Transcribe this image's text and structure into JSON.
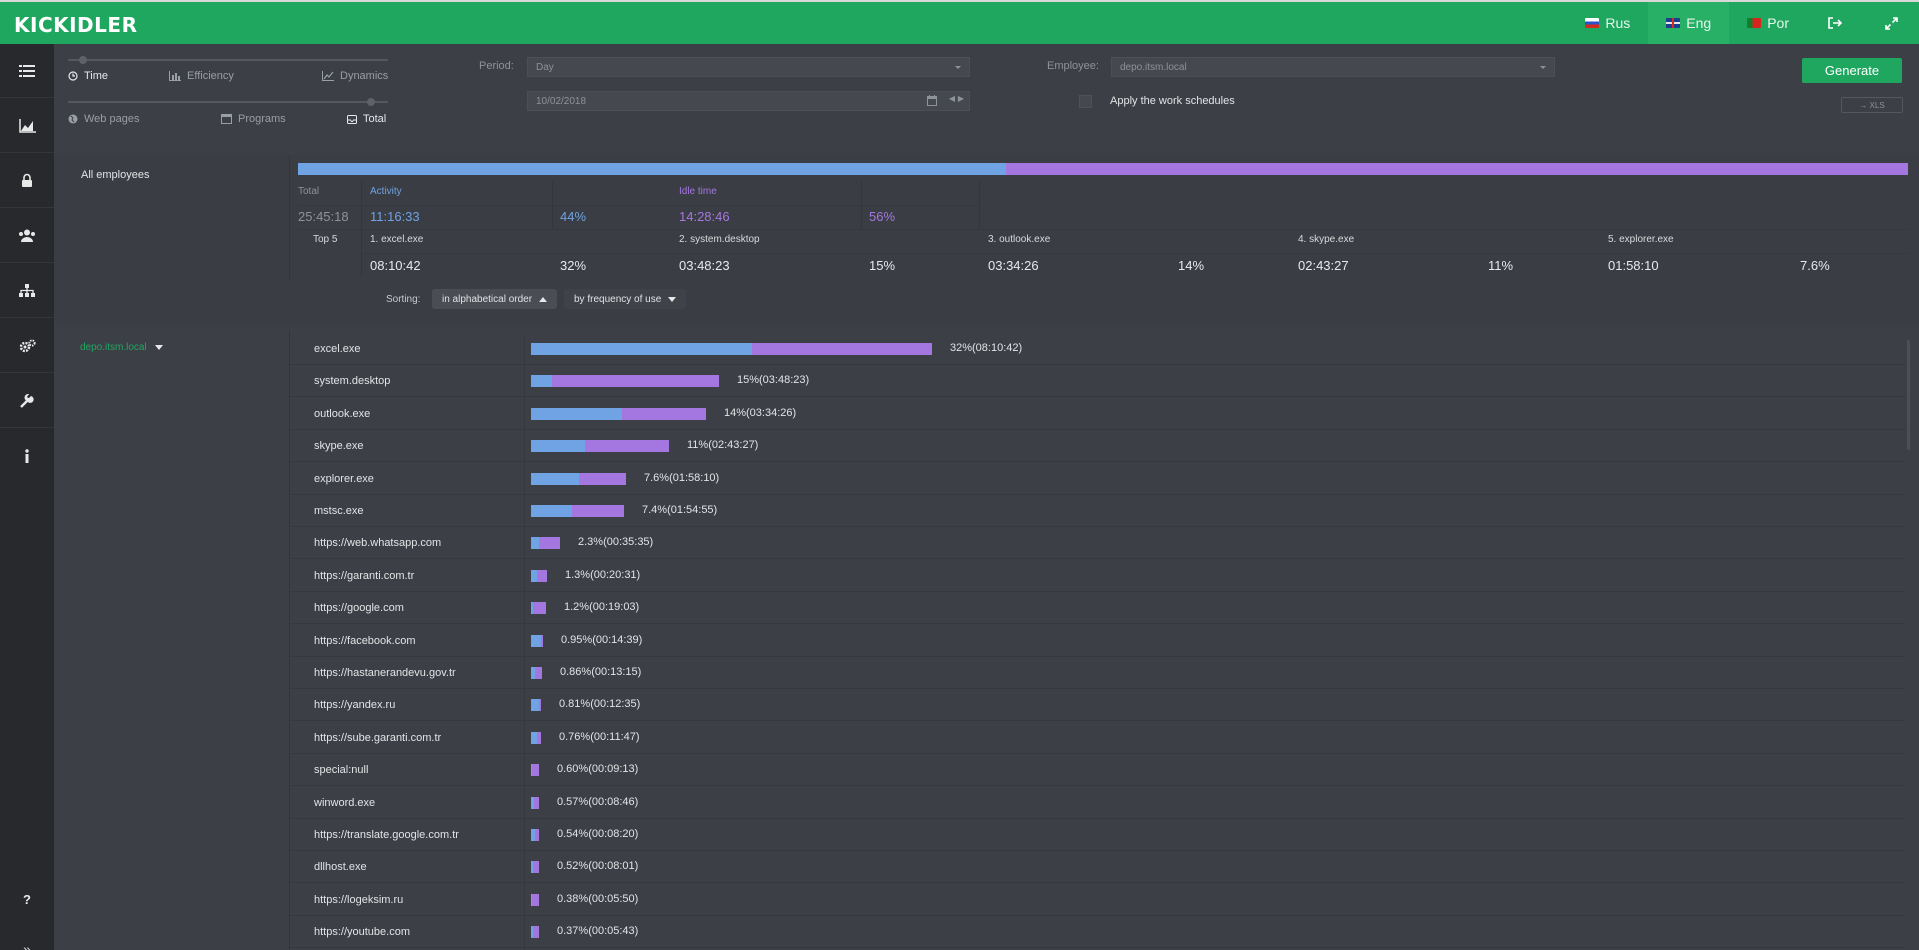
{
  "app": {
    "logo": "KICKIDLER"
  },
  "topnav": {
    "languages": [
      {
        "label": "Rus",
        "flag": "ru"
      },
      {
        "label": "Eng",
        "flag": "gb"
      },
      {
        "label": "Por",
        "flag": "pt"
      }
    ],
    "icons": [
      "logout-icon",
      "fullscreen-icon"
    ]
  },
  "sidebar": {
    "items": [
      "list-icon",
      "chart-icon",
      "lock-icon",
      "users-icon",
      "hierarchy-icon",
      "gears-icon",
      "wrench-icon",
      "info-icon",
      "help-icon",
      "expand-icon"
    ]
  },
  "controls": {
    "view_options": {
      "time": "Time",
      "efficiency": "Efficiency",
      "dynamics": "Dynamics"
    },
    "scope_options": {
      "web_pages": "Web pages",
      "programs": "Programs",
      "total": "Total"
    },
    "period_label": "Period:",
    "period_value": "Day",
    "date_value": "10/02/2018",
    "employee_label": "Employee:",
    "employee_value": "depo.itsm.local",
    "apply_schedules": "Apply the work schedules",
    "generate": "Generate",
    "xls": "→ XLS"
  },
  "colors": {
    "activity": "#6fa3e3",
    "idle": "#a477e0",
    "accent": "#1fa760"
  },
  "summary": {
    "group": "All employees",
    "activity_fraction": 0.44,
    "total_label": "Total",
    "total_value": "25:45:18",
    "activity_label": "Activity",
    "activity_value": "11:16:33",
    "activity_pct": "44%",
    "idle_label": "Idle time",
    "idle_value": "14:28:46",
    "idle_pct": "56%",
    "top5_label": "Top 5",
    "top5": [
      {
        "name": "1. excel.exe",
        "time": "08:10:42",
        "pct": "32%"
      },
      {
        "name": "2. system.desktop",
        "time": "03:48:23",
        "pct": "15%"
      },
      {
        "name": "3. outlook.exe",
        "time": "03:34:26",
        "pct": "14%"
      },
      {
        "name": "4. skype.exe",
        "time": "02:43:27",
        "pct": "11%"
      },
      {
        "name": "5. explorer.exe",
        "time": "01:58:10",
        "pct": "7.6%"
      }
    ]
  },
  "sorting": {
    "label": "Sorting:",
    "alpha": "in alphabetical order",
    "freq": "by frequency of use"
  },
  "employee": {
    "name": "depo.itsm.local"
  },
  "rows": [
    {
      "name": "excel.exe",
      "share": 32,
      "activity_fraction": 0.55,
      "label": "32%(08:10:42)"
    },
    {
      "name": "system.desktop",
      "share": 15,
      "activity_fraction": 0.11,
      "label": "15%(03:48:23)"
    },
    {
      "name": "outlook.exe",
      "share": 14,
      "activity_fraction": 0.52,
      "label": "14%(03:34:26)"
    },
    {
      "name": "skype.exe",
      "share": 11,
      "activity_fraction": 0.39,
      "label": "11%(02:43:27)"
    },
    {
      "name": "explorer.exe",
      "share": 7.6,
      "activity_fraction": 0.5,
      "label": "7.6%(01:58:10)"
    },
    {
      "name": "mstsc.exe",
      "share": 7.4,
      "activity_fraction": 0.44,
      "label": "7.4%(01:54:55)"
    },
    {
      "name": "https://web.whatsapp.com",
      "share": 2.3,
      "activity_fraction": 0.28,
      "label": "2.3%(00:35:35)"
    },
    {
      "name": "https://garanti.com.tr",
      "share": 1.3,
      "activity_fraction": 0.4,
      "label": "1.3%(00:20:31)"
    },
    {
      "name": "https://google.com",
      "share": 1.2,
      "activity_fraction": 0.1,
      "label": "1.2%(00:19:03)"
    },
    {
      "name": "https://facebook.com",
      "share": 0.95,
      "activity_fraction": 0.85,
      "label": "0.95%(00:14:39)"
    },
    {
      "name": "https://hastanerandevu.gov.tr",
      "share": 0.86,
      "activity_fraction": 0.4,
      "label": "0.86%(00:13:15)"
    },
    {
      "name": "https://yandex.ru",
      "share": 0.81,
      "activity_fraction": 0.75,
      "label": "0.81%(00:12:35)"
    },
    {
      "name": "https://sube.garanti.com.tr",
      "share": 0.76,
      "activity_fraction": 0.6,
      "label": "0.76%(00:11:47)"
    },
    {
      "name": "special:null",
      "share": 0.6,
      "activity_fraction": 0.15,
      "label": "0.60%(00:09:13)"
    },
    {
      "name": "winword.exe",
      "share": 0.57,
      "activity_fraction": 0.35,
      "label": "0.57%(00:08:46)"
    },
    {
      "name": "https://translate.google.com.tr",
      "share": 0.54,
      "activity_fraction": 0.5,
      "label": "0.54%(00:08:20)"
    },
    {
      "name": "dllhost.exe",
      "share": 0.52,
      "activity_fraction": 0.2,
      "label": "0.52%(00:08:01)"
    },
    {
      "name": "https://logeksim.ru",
      "share": 0.38,
      "activity_fraction": 0.1,
      "label": "0.38%(00:05:50)"
    },
    {
      "name": "https://youtube.com",
      "share": 0.37,
      "activity_fraction": 0.2,
      "label": "0.37%(00:05:43)"
    }
  ]
}
